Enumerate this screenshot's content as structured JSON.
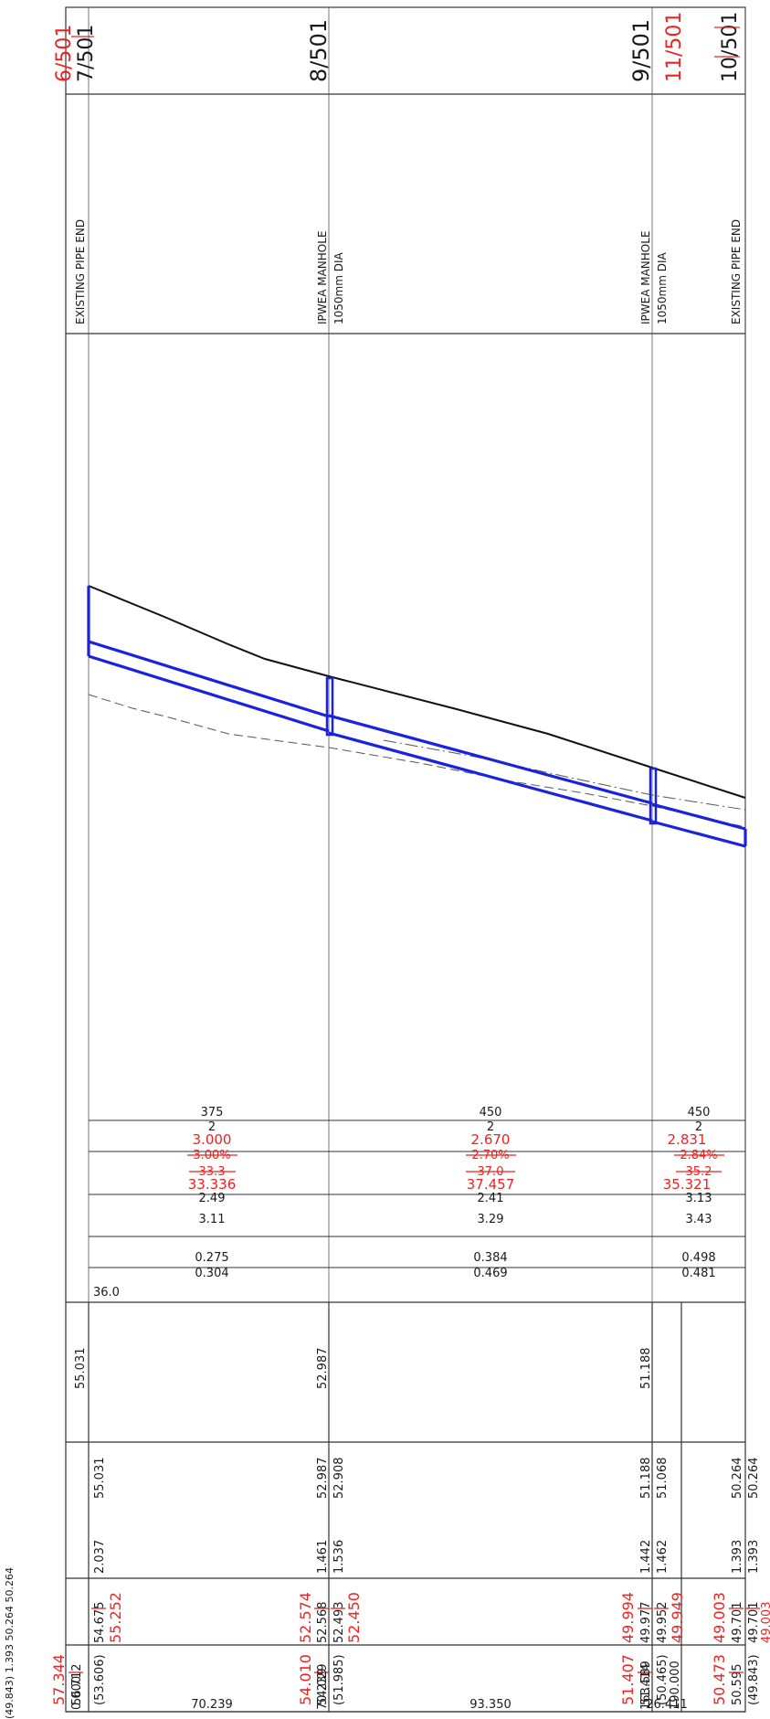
{
  "chainages": {
    "start": "0.000",
    "mh1": "70.239",
    "mh2": "163.589",
    "end": "190.000",
    "span1": "70.239",
    "span2": "93.350",
    "span3": "26.411"
  },
  "header": {
    "sheet_refs": {
      "ref_6": "6/501",
      "ref_7": "7/501",
      "ref_8": "8/501",
      "ref_9": "9/501",
      "ref_11": "11/501",
      "ref_10": "10/501"
    }
  },
  "structures": {
    "start": "EXISTING PIPE END",
    "mh1_title": "IPWEA MANHOLE",
    "mh1_size": "1050mm DIA",
    "mh2_title": "IPWEA MANHOLE",
    "mh2_size": "1050mm DIA",
    "end": "EXISTING PIPE END"
  },
  "pipe_table": {
    "seg1": {
      "dia": "375",
      "class": "2",
      "grade_new": "3.000",
      "grade_old": "3.00%",
      "length_old": "33.3",
      "length_new": "33.336",
      "v1": "2.49",
      "v2": "3.11",
      "q1": "0.275",
      "q2": "0.304",
      "extra": "36.0"
    },
    "seg2": {
      "dia": "450",
      "class": "2",
      "grade_new": "2.670",
      "grade_old": "2.70%",
      "length_old": "37.0",
      "length_new": "37.457",
      "v1": "2.41",
      "v2": "3.29",
      "q1": "0.384",
      "q2": "0.469"
    },
    "seg3": {
      "dia": "450",
      "class": "2",
      "grade_new": "2.831",
      "grade_old": "2.84%",
      "length_old": "35.2",
      "length_new": "35.321",
      "v1": "3.13",
      "v2": "3.43",
      "q1": "0.498",
      "q2": "0.481"
    }
  },
  "bands": {
    "design_surface": {
      "left_edge": "55.031",
      "mh1": "52.987",
      "mh2": "51.188"
    },
    "finished_surface": {
      "start": "55.031",
      "mh1": "52.987",
      "mh1_b": "52.908",
      "mh2": "51.188",
      "mh2_b": "51.068",
      "end_a": "50.264",
      "end_b": "50.264"
    },
    "depth": {
      "start": "2.037",
      "mh1": "1.461",
      "mh1_b": "1.536",
      "mh2": "1.442",
      "mh2_b": "1.462",
      "end_a": "1.393",
      "end_b": "1.393"
    },
    "invert_out": {
      "start_old": "54.675",
      "start_new": "55.252",
      "mh1_new": "52.574",
      "mh1_old": "52.568",
      "mh1_b_old": "52.493",
      "mh1_b_new": "52.450",
      "mh2_new": "49.994",
      "mh2_old": "49.977",
      "mh2_b_old": "49.952",
      "mh2_b_new": "49.949",
      "end_new": "49.003",
      "end_old": "49.701",
      "end_b_old": "49.701",
      "end_cut": "49.003"
    },
    "invert_in": {
      "start_new": "57.344",
      "start_old": "56.712",
      "start_b": "(53.606)",
      "mh1_new": "54.010",
      "mh1_old": "54.029",
      "mh1_b": "(51.985)",
      "mh2_new": "51.407",
      "mh2_old": "51.414",
      "mh2_b": "(50.465)",
      "end_new": "50.473",
      "end_old": "50.595",
      "end_b": "(49.843)"
    }
  },
  "legend": {
    "top_cut_text": "(49.843)   1.393   50.264   50.264"
  }
}
